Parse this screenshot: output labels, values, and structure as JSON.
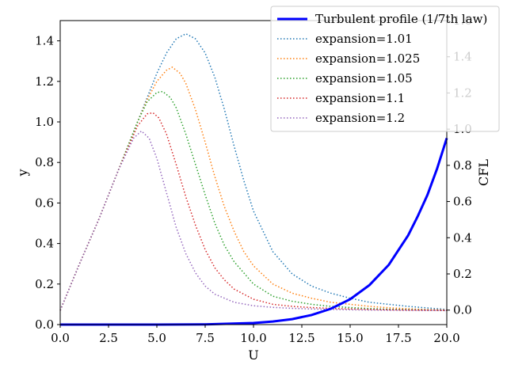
{
  "chart_data": {
    "type": "line",
    "xlabel": "U",
    "ylabel": "y",
    "y2label": "CFL",
    "xlim": [
      0,
      20
    ],
    "ylim": [
      0,
      1.5
    ],
    "y2lim": [
      -0.08,
      1.6
    ],
    "xticks": [
      "0.0",
      "2.5",
      "5.0",
      "7.5",
      "10.0",
      "12.5",
      "15.0",
      "17.5",
      "20.0"
    ],
    "yticks": [
      "0.0",
      "0.2",
      "0.4",
      "0.6",
      "0.8",
      "1.0",
      "1.2",
      "1.4"
    ],
    "y2ticks": [
      "0.0",
      "0.2",
      "0.4",
      "0.6",
      "0.8",
      "1.0",
      "1.2",
      "1.4",
      "1.6"
    ],
    "grid": false,
    "legend_position": "top-right",
    "profile": {
      "name": "Turbulent profile (1/7th law)",
      "color": "#0000ff",
      "axis": "left",
      "style": "solid",
      "x": [
        0,
        2.5,
        5,
        7.5,
        10,
        11,
        12,
        13,
        14,
        15,
        16,
        17,
        18,
        18.5,
        19,
        19.5,
        20
      ],
      "y": [
        0,
        0,
        0,
        0.001,
        0.008,
        0.015,
        0.027,
        0.047,
        0.078,
        0.125,
        0.195,
        0.295,
        0.44,
        0.535,
        0.64,
        0.77,
        0.92
      ]
    },
    "series": [
      {
        "name": "expansion=1.01",
        "color": "#1f77b4",
        "axis": "left",
        "style": "dotted",
        "x": [
          0,
          1,
          2,
          3,
          4,
          5,
          5.5,
          6,
          6.5,
          7,
          7.5,
          8,
          8.5,
          9,
          9.5,
          10,
          11,
          12,
          13,
          14,
          15,
          16,
          17,
          18,
          19,
          20
        ],
        "y": [
          0.07,
          0.3,
          0.52,
          0.76,
          1.0,
          1.24,
          1.34,
          1.41,
          1.435,
          1.41,
          1.34,
          1.22,
          1.06,
          0.88,
          0.71,
          0.56,
          0.36,
          0.25,
          0.19,
          0.155,
          0.13,
          0.11,
          0.1,
          0.09,
          0.082,
          0.075
        ]
      },
      {
        "name": "expansion=1.025",
        "color": "#ff7f0e",
        "axis": "left",
        "style": "dotted",
        "x": [
          0,
          1,
          2,
          3,
          4,
          4.5,
          5,
          5.5,
          5.8,
          6.2,
          6.5,
          7,
          7.5,
          8,
          8.5,
          9,
          9.5,
          10,
          11,
          12,
          13,
          14,
          15,
          16,
          17,
          18,
          19,
          20
        ],
        "y": [
          0.07,
          0.3,
          0.52,
          0.76,
          1.0,
          1.11,
          1.2,
          1.255,
          1.27,
          1.24,
          1.19,
          1.06,
          0.9,
          0.73,
          0.58,
          0.46,
          0.36,
          0.29,
          0.2,
          0.155,
          0.13,
          0.11,
          0.1,
          0.09,
          0.083,
          0.078,
          0.074,
          0.072
        ]
      },
      {
        "name": "expansion=1.05",
        "color": "#2ca02c",
        "axis": "left",
        "style": "dotted",
        "x": [
          0,
          1,
          2,
          3,
          4,
          4.5,
          5,
          5.3,
          5.7,
          6,
          6.5,
          7,
          7.5,
          8,
          8.5,
          9,
          10,
          11,
          12,
          13,
          14,
          15,
          16,
          17,
          18,
          19,
          20
        ],
        "y": [
          0.07,
          0.3,
          0.52,
          0.76,
          1.0,
          1.1,
          1.145,
          1.15,
          1.12,
          1.07,
          0.94,
          0.79,
          0.64,
          0.5,
          0.39,
          0.31,
          0.2,
          0.14,
          0.115,
          0.1,
          0.09,
          0.084,
          0.079,
          0.076,
          0.074,
          0.072,
          0.07
        ]
      },
      {
        "name": "expansion=1.1",
        "color": "#d62728",
        "axis": "left",
        "style": "dotted",
        "x": [
          0,
          1,
          2,
          3,
          4,
          4.5,
          4.8,
          5.1,
          5.5,
          6,
          6.5,
          7,
          7.5,
          8,
          8.5,
          9,
          10,
          11,
          12,
          13,
          14,
          15,
          16,
          17,
          18,
          19,
          20
        ],
        "y": [
          0.07,
          0.3,
          0.52,
          0.76,
          0.98,
          1.04,
          1.045,
          1.02,
          0.94,
          0.79,
          0.63,
          0.49,
          0.37,
          0.28,
          0.22,
          0.175,
          0.125,
          0.1,
          0.09,
          0.084,
          0.08,
          0.077,
          0.075,
          0.073,
          0.072,
          0.071,
          0.07
        ]
      },
      {
        "name": "expansion=1.2",
        "color": "#9467bd",
        "axis": "left",
        "style": "dotted",
        "x": [
          0,
          1,
          2,
          3,
          3.8,
          4.2,
          4.6,
          5,
          5.5,
          6,
          6.5,
          7,
          7.5,
          8,
          9,
          10,
          11,
          12,
          13,
          14,
          15,
          16,
          17,
          18,
          19,
          20
        ],
        "y": [
          0.07,
          0.3,
          0.52,
          0.76,
          0.92,
          0.955,
          0.92,
          0.82,
          0.65,
          0.48,
          0.35,
          0.255,
          0.19,
          0.15,
          0.11,
          0.093,
          0.085,
          0.08,
          0.077,
          0.075,
          0.073,
          0.072,
          0.071,
          0.07,
          0.07,
          0.069
        ]
      }
    ]
  }
}
